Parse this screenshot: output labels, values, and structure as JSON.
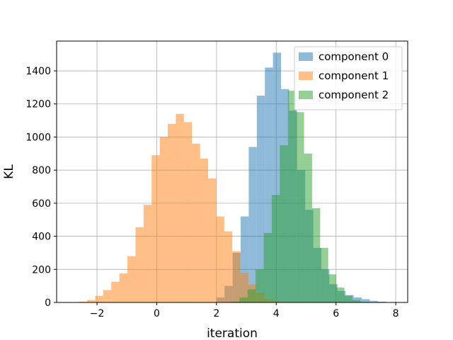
{
  "chart_data": {
    "type": "histogram",
    "xlabel": "iteration",
    "ylabel": "KL",
    "xlim": [
      -3.35,
      8.4
    ],
    "ylim": [
      0,
      1580
    ],
    "xticks": [
      -2,
      0,
      2,
      4,
      6,
      8
    ],
    "xtick_labels": [
      "−2",
      "0",
      "2",
      "4",
      "6",
      "8"
    ],
    "yticks": [
      0,
      200,
      400,
      600,
      800,
      1000,
      1200,
      1400
    ],
    "grid": true,
    "legend_position": "top-right",
    "alpha": 0.5,
    "series": [
      {
        "name": "component 0",
        "color": "#1f77b4",
        "bin_start": 2.0,
        "bin_width": 0.27,
        "counts": [
          30,
          100,
          300,
          520,
          940,
          1250,
          1420,
          1510,
          1290,
          1160,
          800,
          560,
          330,
          200,
          110,
          70,
          45,
          30,
          20,
          10,
          5,
          2
        ]
      },
      {
        "name": "component 1",
        "color": "#ff7f0e",
        "bin_start": -2.6,
        "bin_width": 0.27,
        "counts": [
          5,
          15,
          40,
          75,
          125,
          175,
          280,
          455,
          590,
          890,
          1000,
          1080,
          1140,
          1090,
          960,
          870,
          750,
          520,
          430,
          310,
          180,
          110,
          60,
          20,
          10
        ]
      },
      {
        "name": "component 2",
        "color": "#2ca02c",
        "bin_start": 2.5,
        "bin_width": 0.27,
        "counts": [
          5,
          30,
          80,
          200,
          420,
          650,
          950,
          1280,
          1150,
          900,
          570,
          330,
          170,
          90,
          40,
          15,
          5
        ]
      }
    ]
  }
}
